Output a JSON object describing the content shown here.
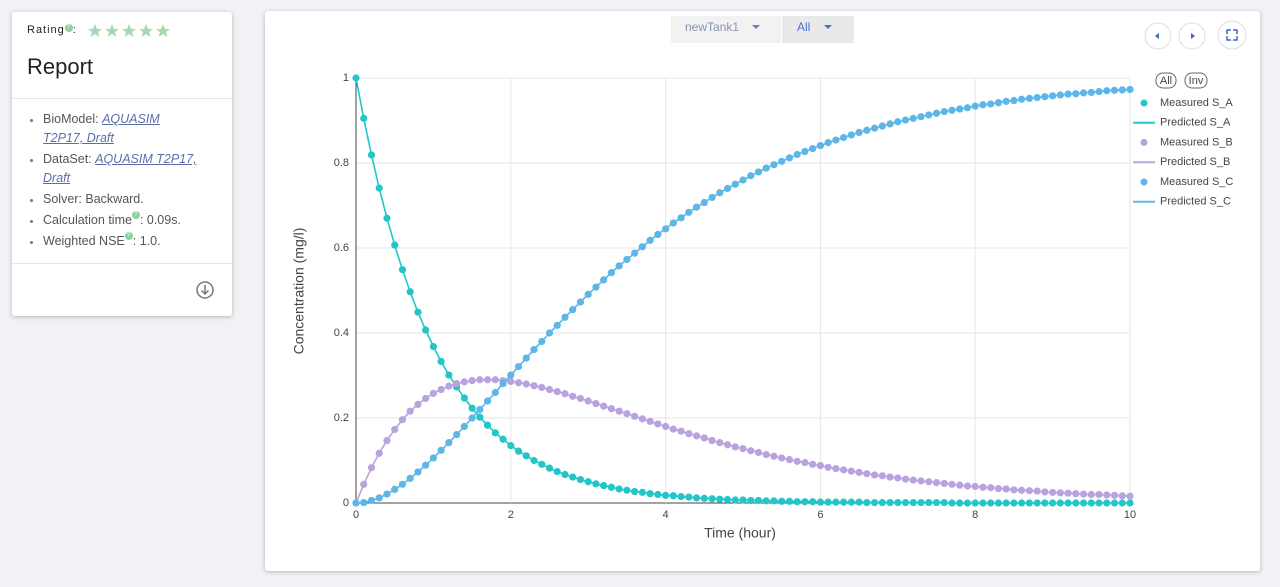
{
  "report": {
    "rating": {
      "label": "Rating",
      "suffix": ":"
    },
    "title": "Report",
    "items": [
      {
        "label": "BioModel: ",
        "link": "AQUASIM T2P17, Draft"
      },
      {
        "label": "DataSet: ",
        "link": "AQUASIM T2P17, Draft"
      },
      {
        "label": "Solver: Backward."
      },
      {
        "label": "Calculation time",
        "value": ": 0.09s."
      },
      {
        "label": "Weighted NSE",
        "value": ": 1.0."
      }
    ]
  },
  "controls": {
    "tank": "newTank1",
    "selection": "All",
    "legend_all": "All",
    "legend_inv": "Inv"
  },
  "chart_data": {
    "type": "line",
    "x_label": "Time (hour)",
    "y_label": "Concentration (mg/l)",
    "grid": true,
    "legend": "right",
    "xlim": [
      0,
      10
    ],
    "xticks": [
      0,
      2,
      4,
      6,
      8,
      10
    ],
    "ylim": [
      0,
      1
    ],
    "yticks": [
      0,
      0.2,
      0.4,
      0.6,
      0.8,
      1
    ],
    "x": [
      0,
      0.1,
      0.2,
      0.3,
      0.4,
      0.5,
      0.6,
      0.7,
      0.8,
      0.9,
      1,
      1.1,
      1.2,
      1.3,
      1.4,
      1.5,
      1.6,
      1.7,
      1.8,
      1.9,
      2,
      2.1,
      2.2,
      2.3,
      2.4,
      2.5,
      2.6,
      2.7,
      2.8,
      2.9,
      3,
      3.1,
      3.2,
      3.3,
      3.4,
      3.5,
      3.6,
      3.7,
      3.8,
      3.9,
      4,
      4.1,
      4.2,
      4.3,
      4.4,
      4.5,
      4.6,
      4.7,
      4.8,
      4.9,
      5,
      5.1,
      5.2,
      5.3,
      5.4,
      5.5,
      5.6,
      5.7,
      5.8,
      5.9,
      6,
      6.1,
      6.2,
      6.3,
      6.4,
      6.5,
      6.6,
      6.7,
      6.8,
      6.9,
      7,
      7.1,
      7.2,
      7.3,
      7.4,
      7.5,
      7.6,
      7.7,
      7.8,
      7.9,
      8,
      8.1,
      8.2,
      8.3,
      8.4,
      8.5,
      8.6,
      8.7,
      8.8,
      8.9,
      9,
      9.1,
      9.2,
      9.3,
      9.4,
      9.5,
      9.6,
      9.7,
      9.8,
      9.9,
      10
    ],
    "series": [
      {
        "marker_name": "Measured S_A",
        "line_name": "Predicted S_A",
        "color": "#22c6c9",
        "values": [
          1,
          0.905,
          0.819,
          0.741,
          0.67,
          0.607,
          0.549,
          0.497,
          0.449,
          0.407,
          0.368,
          0.333,
          0.301,
          0.273,
          0.247,
          0.223,
          0.202,
          0.183,
          0.165,
          0.15,
          0.135,
          0.122,
          0.111,
          0.1,
          0.091,
          0.082,
          0.074,
          0.067,
          0.061,
          0.055,
          0.05,
          0.045,
          0.041,
          0.037,
          0.033,
          0.03,
          0.027,
          0.025,
          0.022,
          0.02,
          0.018,
          0.017,
          0.015,
          0.014,
          0.012,
          0.011,
          0.01,
          0.009,
          0.008,
          0.007,
          0.007,
          0.006,
          0.006,
          0.005,
          0.005,
          0.004,
          0.004,
          0.003,
          0.003,
          0.003,
          0.002,
          0.002,
          0.002,
          0.002,
          0.002,
          0.002,
          0.001,
          0.001,
          0.001,
          0.001,
          0.001,
          0.001,
          0.001,
          0.001,
          0.001,
          0.001,
          0.001,
          0,
          0,
          0,
          0,
          0,
          0,
          0,
          0,
          0,
          0,
          0,
          0,
          0,
          0,
          0,
          0,
          0,
          0,
          0,
          0,
          0,
          0,
          0,
          0
        ]
      },
      {
        "marker_name": "Measured S_B",
        "line_name": "Predicted S_B",
        "color": "#b9a3df",
        "values": [
          0,
          0.044,
          0.083,
          0.117,
          0.147,
          0.173,
          0.196,
          0.216,
          0.232,
          0.246,
          0.258,
          0.267,
          0.275,
          0.281,
          0.285,
          0.288,
          0.29,
          0.29,
          0.29,
          0.288,
          0.286,
          0.283,
          0.28,
          0.276,
          0.272,
          0.267,
          0.262,
          0.257,
          0.251,
          0.246,
          0.24,
          0.234,
          0.228,
          0.222,
          0.216,
          0.21,
          0.204,
          0.198,
          0.192,
          0.186,
          0.18,
          0.174,
          0.169,
          0.163,
          0.158,
          0.153,
          0.147,
          0.142,
          0.137,
          0.132,
          0.128,
          0.123,
          0.119,
          0.114,
          0.11,
          0.106,
          0.102,
          0.098,
          0.095,
          0.091,
          0.088,
          0.084,
          0.081,
          0.078,
          0.075,
          0.072,
          0.069,
          0.066,
          0.064,
          0.061,
          0.059,
          0.056,
          0.054,
          0.052,
          0.05,
          0.048,
          0.046,
          0.044,
          0.042,
          0.04,
          0.039,
          0.037,
          0.036,
          0.034,
          0.033,
          0.031,
          0.03,
          0.029,
          0.028,
          0.026,
          0.025,
          0.024,
          0.023,
          0.022,
          0.021,
          0.02,
          0.02,
          0.019,
          0.018,
          0.017,
          0.016
        ]
      },
      {
        "marker_name": "Measured S_C",
        "line_name": "Predicted S_C",
        "color": "#5cb6e8",
        "values": [
          0,
          0.001,
          0.006,
          0.012,
          0.021,
          0.032,
          0.044,
          0.058,
          0.073,
          0.089,
          0.106,
          0.124,
          0.142,
          0.161,
          0.18,
          0.2,
          0.22,
          0.24,
          0.26,
          0.281,
          0.301,
          0.321,
          0.341,
          0.361,
          0.38,
          0.4,
          0.418,
          0.437,
          0.455,
          0.473,
          0.491,
          0.508,
          0.525,
          0.542,
          0.558,
          0.573,
          0.588,
          0.603,
          0.618,
          0.632,
          0.645,
          0.659,
          0.671,
          0.684,
          0.696,
          0.707,
          0.719,
          0.73,
          0.74,
          0.75,
          0.76,
          0.77,
          0.779,
          0.788,
          0.796,
          0.804,
          0.812,
          0.82,
          0.827,
          0.834,
          0.841,
          0.848,
          0.854,
          0.86,
          0.866,
          0.872,
          0.877,
          0.882,
          0.887,
          0.892,
          0.897,
          0.901,
          0.905,
          0.909,
          0.913,
          0.917,
          0.921,
          0.924,
          0.927,
          0.93,
          0.934,
          0.937,
          0.939,
          0.942,
          0.945,
          0.947,
          0.95,
          0.952,
          0.954,
          0.956,
          0.958,
          0.96,
          0.962,
          0.963,
          0.965,
          0.966,
          0.968,
          0.97,
          0.971,
          0.972,
          0.973
        ]
      }
    ]
  }
}
